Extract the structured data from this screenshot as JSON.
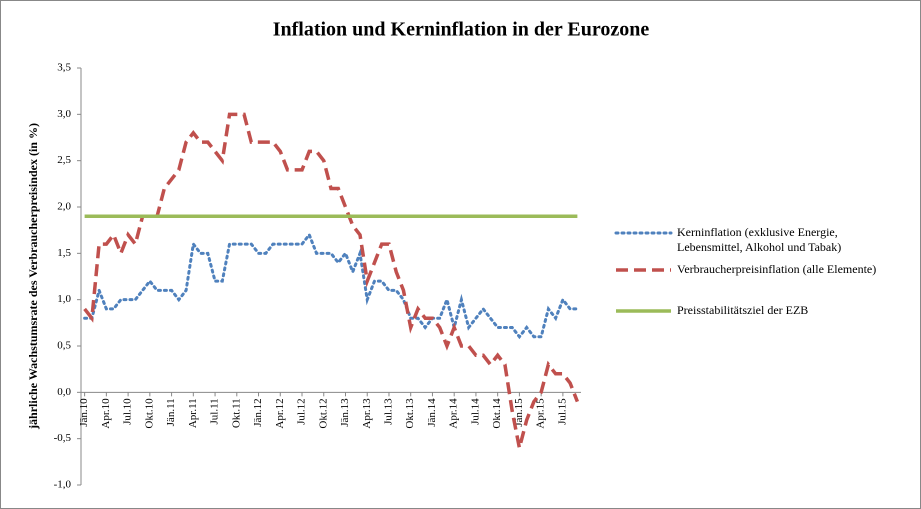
{
  "chart_data": {
    "type": "line",
    "title": "Inflation und Kerninflation in der Eurozone",
    "y_label": "jährliche Wachstumsrate des Verbraucherpreisindex (in %)",
    "categories": [
      "Jän.10",
      null,
      null,
      "Apr.10",
      null,
      null,
      "Jul.10",
      null,
      null,
      "Okt.10",
      null,
      null,
      "Jän.11",
      null,
      null,
      "Apr.11",
      null,
      null,
      "Jul.11",
      null,
      null,
      "Okt.11",
      null,
      null,
      "Jän.12",
      null,
      null,
      "Apr.12",
      null,
      null,
      "Jul.12",
      null,
      null,
      "Okt.12",
      null,
      null,
      "Jän.13",
      null,
      null,
      "Apr.13",
      null,
      null,
      "Jul.13",
      null,
      null,
      "Okt.13",
      null,
      null,
      "Jän.14",
      null,
      null,
      "Apr.14",
      null,
      null,
      "Jul.14",
      null,
      null,
      "Okt.14",
      null,
      null,
      "Jän.15",
      null,
      null,
      "Apr.15",
      null,
      null,
      "Jul.15",
      null,
      null
    ],
    "series": [
      {
        "name": "Kerninflation (exklusive Energie, Lebensmittel, Alkohol und Tabak)",
        "color": "#4f81bd",
        "style": "dotted",
        "values": [
          0.8,
          0.8,
          1.1,
          0.9,
          0.9,
          1.0,
          1.0,
          1.0,
          1.1,
          1.2,
          1.1,
          1.1,
          1.1,
          1.0,
          1.1,
          1.6,
          1.5,
          1.5,
          1.2,
          1.2,
          1.6,
          1.6,
          1.6,
          1.6,
          1.5,
          1.5,
          1.6,
          1.6,
          1.6,
          1.6,
          1.6,
          1.7,
          1.5,
          1.5,
          1.5,
          1.4,
          1.5,
          1.3,
          1.5,
          1.0,
          1.2,
          1.2,
          1.1,
          1.1,
          1.0,
          0.8,
          0.8,
          0.7,
          0.8,
          0.8,
          1.0,
          0.7,
          1.0,
          0.7,
          0.8,
          0.9,
          0.8,
          0.7,
          0.7,
          0.7,
          0.6,
          0.7,
          0.6,
          0.6,
          0.9,
          0.8,
          1.0,
          0.9,
          0.9
        ]
      },
      {
        "name": "Verbraucherpreisinflation (alle Elemente)",
        "color": "#c0504d",
        "style": "dashed",
        "values": [
          0.9,
          0.8,
          1.6,
          1.6,
          1.7,
          1.5,
          1.7,
          1.6,
          1.9,
          1.9,
          1.9,
          2.2,
          2.3,
          2.4,
          2.7,
          2.8,
          2.7,
          2.7,
          2.6,
          2.5,
          3.0,
          3.0,
          3.0,
          2.7,
          2.7,
          2.7,
          2.7,
          2.6,
          2.4,
          2.4,
          2.4,
          2.6,
          2.6,
          2.5,
          2.2,
          2.2,
          2.0,
          1.8,
          1.7,
          1.2,
          1.4,
          1.6,
          1.6,
          1.3,
          1.1,
          0.7,
          0.9,
          0.8,
          0.8,
          0.7,
          0.5,
          0.7,
          0.5,
          0.5,
          0.4,
          0.4,
          0.3,
          0.4,
          0.3,
          -0.2,
          -0.6,
          -0.3,
          -0.1,
          0.0,
          0.3,
          0.2,
          0.2,
          0.1,
          -0.1
        ]
      },
      {
        "name": "Preisstabilitätsziel der EZB",
        "color": "#9bbb59",
        "style": "solid",
        "values": [
          1.9,
          1.9,
          1.9,
          1.9,
          1.9,
          1.9,
          1.9,
          1.9,
          1.9,
          1.9,
          1.9,
          1.9,
          1.9,
          1.9,
          1.9,
          1.9,
          1.9,
          1.9,
          1.9,
          1.9,
          1.9,
          1.9,
          1.9,
          1.9,
          1.9,
          1.9,
          1.9,
          1.9,
          1.9,
          1.9,
          1.9,
          1.9,
          1.9,
          1.9,
          1.9,
          1.9,
          1.9,
          1.9,
          1.9,
          1.9,
          1.9,
          1.9,
          1.9,
          1.9,
          1.9,
          1.9,
          1.9,
          1.9,
          1.9,
          1.9,
          1.9,
          1.9,
          1.9,
          1.9,
          1.9,
          1.9,
          1.9,
          1.9,
          1.9,
          1.9,
          1.9,
          1.9,
          1.9,
          1.9,
          1.9,
          1.9,
          1.9,
          1.9,
          1.9
        ]
      }
    ],
    "ylim": [
      -1.0,
      3.5
    ],
    "yticks": [
      {
        "value": -1.0,
        "label": "-1,0"
      },
      {
        "value": -0.5,
        "label": "-0,5"
      },
      {
        "value": 0.0,
        "label": "0,0"
      },
      {
        "value": 0.5,
        "label": "0,5"
      },
      {
        "value": 1.0,
        "label": "1,0"
      },
      {
        "value": 1.5,
        "label": "1,5"
      },
      {
        "value": 2.0,
        "label": "2,0"
      },
      {
        "value": 2.5,
        "label": "2,5"
      },
      {
        "value": 3.0,
        "label": "3,0"
      },
      {
        "value": 3.5,
        "label": "3,5"
      }
    ],
    "legend": "right",
    "grid": false
  }
}
